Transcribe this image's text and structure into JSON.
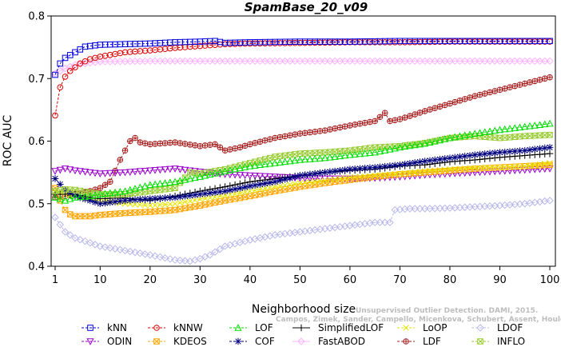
{
  "chart_data": {
    "type": "line",
    "title": "SpamBase_20_v09",
    "xlabel": "Neighborhood size",
    "ylabel": "ROC AUC",
    "xlim": [
      1,
      100
    ],
    "ylim": [
      0.4,
      0.8
    ],
    "x_ticks": [
      1,
      10,
      20,
      30,
      40,
      50,
      60,
      70,
      80,
      90,
      100
    ],
    "y_ticks": [
      0.4,
      0.5,
      0.6,
      0.7,
      0.8
    ],
    "x_tick_labels": [
      "1",
      "10",
      "20",
      "30",
      "40",
      "50",
      "60",
      "70",
      "80",
      "90",
      "100"
    ],
    "y_tick_labels": [
      "0.4",
      "0.5",
      "0.6",
      "0.7",
      "0.8"
    ],
    "grid": false,
    "legend_position": "bottom",
    "series": [
      {
        "name": "kNN",
        "color": "#0000dd",
        "marker": "square",
        "dashed": true,
        "points": [
          [
            1,
            0.706
          ],
          [
            2,
            0.724
          ],
          [
            3,
            0.733
          ],
          [
            5,
            0.742
          ],
          [
            7,
            0.751
          ],
          [
            10,
            0.754
          ],
          [
            15,
            0.755
          ],
          [
            20,
            0.756
          ],
          [
            25,
            0.758
          ],
          [
            30,
            0.759
          ],
          [
            33,
            0.76
          ],
          [
            35,
            0.757
          ],
          [
            40,
            0.758
          ],
          [
            50,
            0.759
          ],
          [
            60,
            0.759
          ],
          [
            70,
            0.76
          ],
          [
            80,
            0.76
          ],
          [
            90,
            0.76
          ],
          [
            100,
            0.76
          ]
        ]
      },
      {
        "name": "kNNW",
        "color": "#dd0000",
        "marker": "circle",
        "dashed": true,
        "points": [
          [
            1,
            0.641
          ],
          [
            2,
            0.686
          ],
          [
            3,
            0.703
          ],
          [
            4,
            0.712
          ],
          [
            6,
            0.724
          ],
          [
            8,
            0.731
          ],
          [
            10,
            0.735
          ],
          [
            15,
            0.742
          ],
          [
            20,
            0.745
          ],
          [
            25,
            0.749
          ],
          [
            30,
            0.752
          ],
          [
            35,
            0.755
          ],
          [
            40,
            0.756
          ],
          [
            50,
            0.757
          ],
          [
            60,
            0.758
          ],
          [
            70,
            0.758
          ],
          [
            80,
            0.759
          ],
          [
            90,
            0.759
          ],
          [
            100,
            0.759
          ]
        ]
      },
      {
        "name": "LOF",
        "color": "#00dd00",
        "marker": "triangle-up",
        "dashed": true,
        "points": [
          [
            1,
            0.51
          ],
          [
            3,
            0.505
          ],
          [
            5,
            0.51
          ],
          [
            8,
            0.512
          ],
          [
            10,
            0.515
          ],
          [
            15,
            0.52
          ],
          [
            20,
            0.53
          ],
          [
            25,
            0.535
          ],
          [
            30,
            0.543
          ],
          [
            35,
            0.552
          ],
          [
            40,
            0.56
          ],
          [
            45,
            0.565
          ],
          [
            50,
            0.57
          ],
          [
            55,
            0.573
          ],
          [
            60,
            0.578
          ],
          [
            65,
            0.582
          ],
          [
            70,
            0.59
          ],
          [
            75,
            0.596
          ],
          [
            80,
            0.605
          ],
          [
            85,
            0.612
          ],
          [
            90,
            0.618
          ],
          [
            95,
            0.623
          ],
          [
            100,
            0.628
          ]
        ]
      },
      {
        "name": "SimplifiedLOF",
        "color": "#000000",
        "marker": "plus",
        "dashed": false,
        "points": [
          [
            1,
            0.515
          ],
          [
            5,
            0.515
          ],
          [
            8,
            0.51
          ],
          [
            10,
            0.508
          ],
          [
            15,
            0.509
          ],
          [
            20,
            0.505
          ],
          [
            25,
            0.512
          ],
          [
            30,
            0.52
          ],
          [
            35,
            0.527
          ],
          [
            40,
            0.535
          ],
          [
            45,
            0.54
          ],
          [
            50,
            0.545
          ],
          [
            55,
            0.55
          ],
          [
            60,
            0.553
          ],
          [
            65,
            0.555
          ],
          [
            70,
            0.56
          ],
          [
            75,
            0.562
          ],
          [
            80,
            0.567
          ],
          [
            85,
            0.57
          ],
          [
            90,
            0.574
          ],
          [
            95,
            0.577
          ],
          [
            100,
            0.58
          ]
        ]
      },
      {
        "name": "LoOP",
        "color": "#e6e600",
        "marker": "x",
        "dashed": true,
        "points": [
          [
            1,
            0.52
          ],
          [
            3,
            0.515
          ],
          [
            5,
            0.512
          ],
          [
            8,
            0.508
          ],
          [
            10,
            0.505
          ],
          [
            15,
            0.5
          ],
          [
            20,
            0.497
          ],
          [
            25,
            0.5
          ],
          [
            30,
            0.507
          ],
          [
            35,
            0.513
          ],
          [
            40,
            0.52
          ],
          [
            45,
            0.527
          ],
          [
            50,
            0.533
          ],
          [
            55,
            0.537
          ],
          [
            60,
            0.542
          ],
          [
            65,
            0.545
          ],
          [
            70,
            0.548
          ],
          [
            75,
            0.552
          ],
          [
            80,
            0.555
          ],
          [
            85,
            0.557
          ],
          [
            90,
            0.558
          ],
          [
            95,
            0.56
          ],
          [
            100,
            0.565
          ]
        ]
      },
      {
        "name": "LDOF",
        "color": "#b8b8ec",
        "marker": "diamond",
        "dashed": true,
        "points": [
          [
            1,
            0.478
          ],
          [
            3,
            0.455
          ],
          [
            5,
            0.445
          ],
          [
            7,
            0.44
          ],
          [
            10,
            0.432
          ],
          [
            15,
            0.425
          ],
          [
            20,
            0.418
          ],
          [
            25,
            0.41
          ],
          [
            28,
            0.408
          ],
          [
            30,
            0.412
          ],
          [
            32,
            0.418
          ],
          [
            35,
            0.432
          ],
          [
            40,
            0.442
          ],
          [
            45,
            0.45
          ],
          [
            50,
            0.455
          ],
          [
            55,
            0.46
          ],
          [
            60,
            0.465
          ],
          [
            65,
            0.47
          ],
          [
            68,
            0.47
          ],
          [
            69,
            0.49
          ],
          [
            72,
            0.492
          ],
          [
            75,
            0.492
          ],
          [
            80,
            0.493
          ],
          [
            85,
            0.495
          ],
          [
            90,
            0.497
          ],
          [
            95,
            0.5
          ],
          [
            100,
            0.505
          ]
        ]
      },
      {
        "name": "ODIN",
        "color": "#9900cc",
        "marker": "triangle-down",
        "dashed": true,
        "points": [
          [
            1,
            0.552
          ],
          [
            3,
            0.556
          ],
          [
            5,
            0.553
          ],
          [
            8,
            0.55
          ],
          [
            10,
            0.548
          ],
          [
            15,
            0.55
          ],
          [
            20,
            0.553
          ],
          [
            25,
            0.556
          ],
          [
            30,
            0.551
          ],
          [
            35,
            0.547
          ],
          [
            40,
            0.545
          ],
          [
            45,
            0.543
          ],
          [
            50,
            0.541
          ],
          [
            55,
            0.54
          ],
          [
            60,
            0.54
          ],
          [
            65,
            0.541
          ],
          [
            70,
            0.543
          ],
          [
            75,
            0.546
          ],
          [
            80,
            0.548
          ],
          [
            85,
            0.55
          ],
          [
            90,
            0.552
          ],
          [
            95,
            0.554
          ],
          [
            100,
            0.556
          ]
        ]
      },
      {
        "name": "KDEOS",
        "color": "#ffa500",
        "marker": "square-x",
        "dashed": true,
        "points": [
          [
            1,
            0.525
          ],
          [
            2,
            0.505
          ],
          [
            3,
            0.49
          ],
          [
            4,
            0.483
          ],
          [
            5,
            0.48
          ],
          [
            8,
            0.48
          ],
          [
            10,
            0.482
          ],
          [
            15,
            0.485
          ],
          [
            20,
            0.487
          ],
          [
            25,
            0.49
          ],
          [
            30,
            0.497
          ],
          [
            35,
            0.505
          ],
          [
            40,
            0.512
          ],
          [
            45,
            0.52
          ],
          [
            50,
            0.527
          ],
          [
            55,
            0.533
          ],
          [
            60,
            0.538
          ],
          [
            65,
            0.543
          ],
          [
            70,
            0.547
          ],
          [
            75,
            0.55
          ],
          [
            80,
            0.553
          ],
          [
            85,
            0.556
          ],
          [
            90,
            0.558
          ],
          [
            95,
            0.56
          ],
          [
            100,
            0.562
          ]
        ]
      },
      {
        "name": "COF",
        "color": "#000080",
        "marker": "asterisk",
        "dashed": true,
        "points": [
          [
            1,
            0.54
          ],
          [
            3,
            0.522
          ],
          [
            5,
            0.512
          ],
          [
            8,
            0.505
          ],
          [
            10,
            0.5
          ],
          [
            15,
            0.505
          ],
          [
            20,
            0.508
          ],
          [
            25,
            0.51
          ],
          [
            30,
            0.515
          ],
          [
            35,
            0.52
          ],
          [
            40,
            0.528
          ],
          [
            45,
            0.535
          ],
          [
            50,
            0.545
          ],
          [
            55,
            0.55
          ],
          [
            60,
            0.555
          ],
          [
            65,
            0.558
          ],
          [
            70,
            0.562
          ],
          [
            75,
            0.568
          ],
          [
            80,
            0.573
          ],
          [
            85,
            0.578
          ],
          [
            90,
            0.582
          ],
          [
            95,
            0.585
          ],
          [
            100,
            0.59
          ]
        ]
      },
      {
        "name": "FastABOD",
        "color": "#ffb3ff",
        "marker": "diamond",
        "dashed": false,
        "points": [
          [
            1,
            0.708
          ],
          [
            3,
            0.716
          ],
          [
            5,
            0.722
          ],
          [
            8,
            0.725
          ],
          [
            10,
            0.727
          ],
          [
            20,
            0.728
          ],
          [
            30,
            0.728
          ],
          [
            40,
            0.728
          ],
          [
            50,
            0.728
          ],
          [
            60,
            0.728
          ],
          [
            70,
            0.728
          ],
          [
            80,
            0.728
          ],
          [
            90,
            0.728
          ],
          [
            100,
            0.728
          ]
        ]
      },
      {
        "name": "LDF",
        "color": "#aa2222",
        "marker": "circle-plus",
        "dashed": true,
        "points": [
          [
            1,
            0.51
          ],
          [
            3,
            0.512
          ],
          [
            5,
            0.515
          ],
          [
            8,
            0.52
          ],
          [
            10,
            0.525
          ],
          [
            12,
            0.535
          ],
          [
            14,
            0.57
          ],
          [
            16,
            0.6
          ],
          [
            17,
            0.605
          ],
          [
            18,
            0.598
          ],
          [
            20,
            0.595
          ],
          [
            25,
            0.598
          ],
          [
            30,
            0.592
          ],
          [
            33,
            0.595
          ],
          [
            35,
            0.585
          ],
          [
            38,
            0.59
          ],
          [
            40,
            0.595
          ],
          [
            45,
            0.605
          ],
          [
            50,
            0.612
          ],
          [
            55,
            0.617
          ],
          [
            60,
            0.625
          ],
          [
            65,
            0.632
          ],
          [
            67,
            0.645
          ],
          [
            68,
            0.632
          ],
          [
            70,
            0.635
          ],
          [
            75,
            0.648
          ],
          [
            80,
            0.66
          ],
          [
            85,
            0.672
          ],
          [
            90,
            0.682
          ],
          [
            95,
            0.692
          ],
          [
            100,
            0.702
          ]
        ]
      },
      {
        "name": "INFLO",
        "color": "#99cc33",
        "marker": "square-x",
        "dashed": true,
        "points": [
          [
            1,
            0.52
          ],
          [
            3,
            0.523
          ],
          [
            5,
            0.522
          ],
          [
            8,
            0.518
          ],
          [
            10,
            0.515
          ],
          [
            15,
            0.515
          ],
          [
            20,
            0.52
          ],
          [
            25,
            0.525
          ],
          [
            28,
            0.55
          ],
          [
            30,
            0.548
          ],
          [
            35,
            0.555
          ],
          [
            40,
            0.565
          ],
          [
            45,
            0.575
          ],
          [
            50,
            0.58
          ],
          [
            55,
            0.582
          ],
          [
            60,
            0.585
          ],
          [
            65,
            0.59
          ],
          [
            70,
            0.592
          ],
          [
            75,
            0.597
          ],
          [
            80,
            0.605
          ],
          [
            85,
            0.608
          ],
          [
            90,
            0.605
          ],
          [
            95,
            0.608
          ],
          [
            100,
            0.61
          ]
        ]
      }
    ]
  },
  "watermark": {
    "line1": "Unsupervised Outlier Detection. DAMI, 2015.",
    "line2": "Campos, Zimek, Sander, Campello, Micenkova, Schubert, Assent, Houle"
  }
}
